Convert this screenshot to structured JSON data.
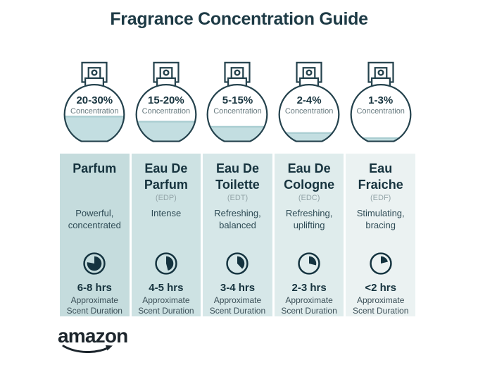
{
  "title": "Fragrance Concentration Guide",
  "logo_text": "amazon",
  "labels": {
    "concentration": "Concentration",
    "duration_note": "Approximate Scent Duration"
  },
  "colors": {
    "title_ink": "#1d3a45",
    "ink": "#16333e",
    "abbr_gray": "#93a4a8",
    "liquid": "#c3dee1",
    "column_shades": [
      "#c5dcdd",
      "#cde2e3",
      "#d6e7e8",
      "#dfecec",
      "#ebf2f2"
    ]
  },
  "columns": [
    {
      "concentration": "20-30%",
      "fill_percent": 45,
      "name": "Parfum",
      "abbr": "",
      "description": "Powerful, concentrated",
      "clock_percent": 78,
      "duration": "6-8 hrs"
    },
    {
      "concentration": "15-20%",
      "fill_percent": 36,
      "name": "Eau De Parfum",
      "abbr": "(EDP)",
      "description": "Intense",
      "clock_percent": 46,
      "duration": "4-5 hrs"
    },
    {
      "concentration": "5-15%",
      "fill_percent": 27,
      "name": "Eau De Toilette",
      "abbr": "(EDT)",
      "description": "Refreshing, balanced",
      "clock_percent": 38,
      "duration": "3-4 hrs"
    },
    {
      "concentration": "2-4%",
      "fill_percent": 16,
      "name": "Eau De Cologne",
      "abbr": "(EDC)",
      "description": "Refreshing, uplifting",
      "clock_percent": 29,
      "duration": "2-3 hrs"
    },
    {
      "concentration": "1-3%",
      "fill_percent": 7,
      "name": "Eau Fraiche",
      "abbr": "(EDF)",
      "description": "Stimulating, bracing",
      "clock_percent": 21,
      "duration": "<2 hrs"
    }
  ]
}
